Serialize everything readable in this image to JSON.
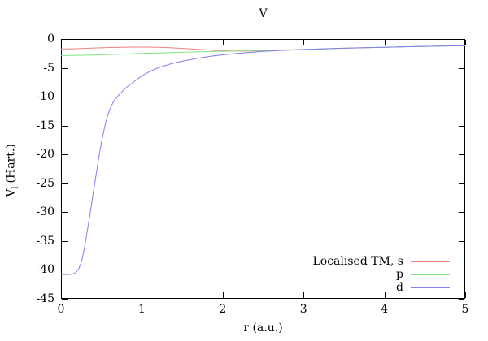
{
  "chart_data": {
    "type": "line",
    "title": "V",
    "xlabel": "r (a.u.)",
    "ylabel": "V_l (Hart.)",
    "ylabel_parts": {
      "main": "V",
      "sub": "l",
      "unit": "(Hart.)"
    },
    "xlim": [
      0,
      5
    ],
    "ylim": [
      -45,
      0
    ],
    "xticks": [
      0,
      1,
      2,
      3,
      4,
      5
    ],
    "yticks": [
      0,
      -5,
      -10,
      -15,
      -20,
      -25,
      -30,
      -35,
      -40,
      -45
    ],
    "grid": false,
    "legend_position": "inside bottom-right",
    "colors": {
      "background": "#ffffff",
      "axis": "#000000",
      "text": "#000000"
    },
    "series": [
      {
        "key": "s",
        "name": "Localised TM, s",
        "color": "#f47f7f",
        "points": [
          [
            0,
            -1.75
          ],
          [
            0.15,
            -1.7
          ],
          [
            0.3,
            -1.62
          ],
          [
            0.45,
            -1.54
          ],
          [
            0.6,
            -1.47
          ],
          [
            0.75,
            -1.43
          ],
          [
            0.9,
            -1.41
          ],
          [
            1.05,
            -1.41
          ],
          [
            1.2,
            -1.44
          ],
          [
            1.35,
            -1.52
          ],
          [
            1.5,
            -1.63
          ],
          [
            1.65,
            -1.76
          ],
          [
            1.8,
            -1.89
          ],
          [
            1.95,
            -2.0
          ],
          [
            2.1,
            -2.07
          ],
          [
            2.25,
            -2.1
          ],
          [
            2.4,
            -2.08
          ],
          [
            2.6,
            -2.02
          ],
          [
            2.8,
            -1.93
          ],
          [
            3.0,
            -1.83
          ],
          [
            3.25,
            -1.71
          ],
          [
            3.5,
            -1.61
          ],
          [
            3.75,
            -1.51
          ],
          [
            4.0,
            -1.43
          ],
          [
            4.25,
            -1.35
          ],
          [
            4.5,
            -1.28
          ],
          [
            4.75,
            -1.21
          ],
          [
            5.0,
            -1.15
          ]
        ]
      },
      {
        "key": "p",
        "name": "p",
        "color": "#7ee57e",
        "points": [
          [
            0,
            -2.87
          ],
          [
            0.2,
            -2.83
          ],
          [
            0.4,
            -2.77
          ],
          [
            0.6,
            -2.69
          ],
          [
            0.8,
            -2.6
          ],
          [
            1.0,
            -2.51
          ],
          [
            1.2,
            -2.42
          ],
          [
            1.4,
            -2.33
          ],
          [
            1.6,
            -2.25
          ],
          [
            1.8,
            -2.18
          ],
          [
            2.0,
            -2.12
          ],
          [
            2.2,
            -2.06
          ],
          [
            2.4,
            -2.01
          ],
          [
            2.6,
            -1.95
          ],
          [
            2.8,
            -1.89
          ],
          [
            3.0,
            -1.82
          ],
          [
            3.25,
            -1.71
          ],
          [
            3.5,
            -1.61
          ],
          [
            3.75,
            -1.51
          ],
          [
            4.0,
            -1.43
          ],
          [
            4.25,
            -1.35
          ],
          [
            4.5,
            -1.28
          ],
          [
            4.75,
            -1.21
          ],
          [
            5.0,
            -1.15
          ]
        ]
      },
      {
        "key": "d",
        "name": "d",
        "color": "#7f7fee",
        "points": [
          [
            0,
            -40.8
          ],
          [
            0.08,
            -40.8
          ],
          [
            0.14,
            -40.75
          ],
          [
            0.18,
            -40.5
          ],
          [
            0.22,
            -39.8
          ],
          [
            0.26,
            -38.3
          ],
          [
            0.3,
            -35.4
          ],
          [
            0.34,
            -32.0
          ],
          [
            0.38,
            -28.4
          ],
          [
            0.42,
            -24.8
          ],
          [
            0.46,
            -21.2
          ],
          [
            0.5,
            -17.9
          ],
          [
            0.55,
            -14.6
          ],
          [
            0.6,
            -12.3
          ],
          [
            0.65,
            -10.8
          ],
          [
            0.72,
            -9.6
          ],
          [
            0.8,
            -8.5
          ],
          [
            0.9,
            -7.4
          ],
          [
            1.0,
            -6.4
          ],
          [
            1.1,
            -5.6
          ],
          [
            1.2,
            -5.0
          ],
          [
            1.35,
            -4.35
          ],
          [
            1.5,
            -3.85
          ],
          [
            1.7,
            -3.3
          ],
          [
            1.9,
            -2.9
          ],
          [
            2.1,
            -2.6
          ],
          [
            2.3,
            -2.35
          ],
          [
            2.5,
            -2.15
          ],
          [
            2.7,
            -1.99
          ],
          [
            2.9,
            -1.87
          ],
          [
            3.1,
            -1.77
          ],
          [
            3.3,
            -1.68
          ],
          [
            3.5,
            -1.61
          ],
          [
            3.75,
            -1.51
          ],
          [
            4.0,
            -1.43
          ],
          [
            4.25,
            -1.35
          ],
          [
            4.5,
            -1.28
          ],
          [
            4.75,
            -1.21
          ],
          [
            5.0,
            -1.15
          ]
        ]
      }
    ]
  }
}
